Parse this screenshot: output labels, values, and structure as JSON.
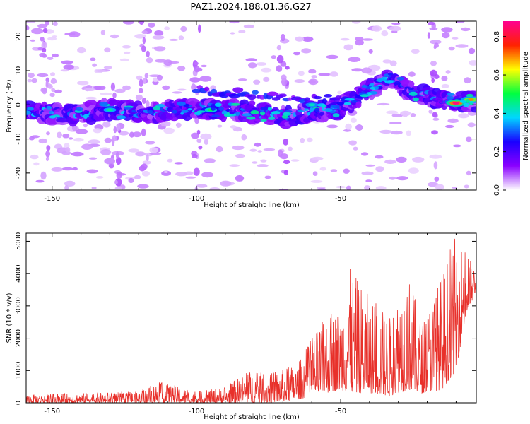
{
  "title": "PAZ1.2024.188.01.36.G27",
  "colors": {
    "snr_line": "#e8302a",
    "axes": "#000000",
    "colormap": [
      "#ffffff",
      "#8a00ff",
      "#1a00ff",
      "#00d6ff",
      "#00ff40",
      "#ffff00",
      "#ff2200",
      "#ff0090"
    ]
  },
  "chart_data": [
    {
      "type": "heatmap",
      "title": "",
      "xlabel": "Height of straight line (km)",
      "ylabel": "Frequency (Hz)",
      "xlim": [
        -159,
        -3
      ],
      "ylim": [
        -25,
        24.5
      ],
      "xticks": [
        -150,
        -100,
        -50
      ],
      "yticks": [
        -20,
        -10,
        0,
        10,
        20
      ],
      "colorbar": {
        "label": "Normalized spectral amplitude",
        "range": [
          0,
          0.88
        ],
        "ticks": [
          0.0,
          0.2,
          0.4,
          0.6,
          0.8
        ]
      },
      "ridge": [
        {
          "x": -159,
          "y": -1.5
        },
        {
          "x": -145,
          "y": -3
        },
        {
          "x": -130,
          "y": -1.5
        },
        {
          "x": -115,
          "y": -2.5
        },
        {
          "x": -100,
          "y": -1
        },
        {
          "x": -90,
          "y": -1.5
        },
        {
          "x": -80,
          "y": -2
        },
        {
          "x": -70,
          "y": -4
        },
        {
          "x": -60,
          "y": -2
        },
        {
          "x": -50,
          "y": -1
        },
        {
          "x": -42,
          "y": 3.5
        },
        {
          "x": -33,
          "y": 8
        },
        {
          "x": -25,
          "y": 3.5
        },
        {
          "x": -15,
          "y": 1.5
        },
        {
          "x": -10,
          "y": 1
        },
        {
          "x": -3,
          "y": 1
        }
      ],
      "upper_branch": [
        {
          "x": -100,
          "y": 4.5
        },
        {
          "x": -80,
          "y": 3
        },
        {
          "x": -60,
          "y": 1.5
        },
        {
          "x": -50,
          "y": 2
        }
      ],
      "hotspots": [
        {
          "x": -130,
          "y": -1.5,
          "amp": 0.45
        },
        {
          "x": -10,
          "y": 0.5,
          "amp": 0.88
        },
        {
          "x": -5,
          "y": 1.5,
          "amp": 0.7
        },
        {
          "x": -60,
          "y": 0,
          "amp": 0.42
        },
        {
          "x": -95,
          "y": -1.5,
          "amp": 0.5
        }
      ]
    },
    {
      "type": "line",
      "title": "",
      "xlabel": "Height of straight line (km)",
      "ylabel": "SNR (10 * v/v)",
      "xlim": [
        -159,
        -3
      ],
      "ylim": [
        0,
        5250
      ],
      "xticks": [
        -150,
        -100,
        -50
      ],
      "yticks": [
        0,
        1000,
        2000,
        3000,
        4000,
        5000
      ],
      "series": [
        {
          "values_envelope": [
            {
              "x": -159,
              "low": 0,
              "high": 250
            },
            {
              "x": -140,
              "low": 0,
              "high": 300
            },
            {
              "x": -120,
              "low": 0,
              "high": 350
            },
            {
              "x": -113,
              "low": 0,
              "high": 650
            },
            {
              "x": -100,
              "low": 0,
              "high": 350
            },
            {
              "x": -90,
              "low": 0,
              "high": 500
            },
            {
              "x": -82,
              "low": 0,
              "high": 1000
            },
            {
              "x": -75,
              "low": 0,
              "high": 900
            },
            {
              "x": -65,
              "low": 100,
              "high": 1200
            },
            {
              "x": -60,
              "low": 200,
              "high": 2000
            },
            {
              "x": -55,
              "low": 300,
              "high": 2700
            },
            {
              "x": -50,
              "low": 400,
              "high": 3000
            },
            {
              "x": -47,
              "low": 300,
              "high": 4200
            },
            {
              "x": -40,
              "low": 300,
              "high": 3300
            },
            {
              "x": -33,
              "low": 200,
              "high": 2700
            },
            {
              "x": -27,
              "low": 400,
              "high": 4200
            },
            {
              "x": -22,
              "low": 300,
              "high": 2500
            },
            {
              "x": -15,
              "low": 400,
              "high": 4000
            },
            {
              "x": -10,
              "low": 1000,
              "high": 5250
            },
            {
              "x": -7,
              "low": 2500,
              "high": 4800
            },
            {
              "x": -3,
              "low": 3500,
              "high": 4100
            }
          ]
        }
      ]
    }
  ]
}
